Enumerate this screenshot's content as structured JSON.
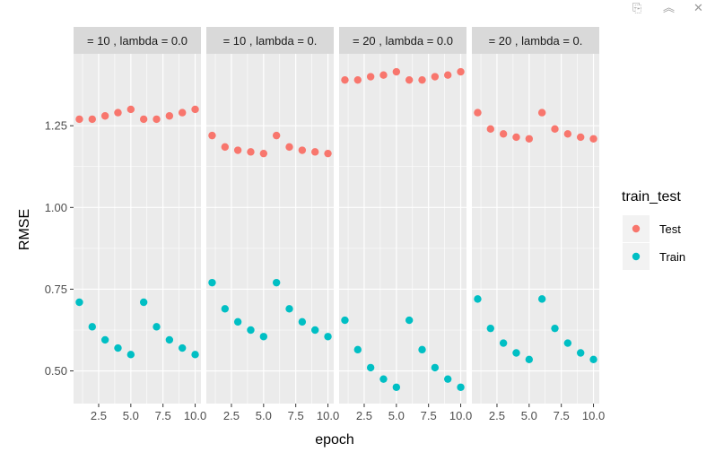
{
  "toolbar": {
    "icons": [
      "export-icon",
      "collapse-icon",
      "close-icon"
    ],
    "export_glyph": "⎘",
    "collapse_glyph": "︽",
    "close_glyph": "✕"
  },
  "chart_data": {
    "type": "scatter",
    "xlabel": "epoch",
    "ylabel": "RMSE",
    "xlim": [
      0.55,
      10.45
    ],
    "ylim": [
      0.4,
      1.47
    ],
    "xticks": [
      2.5,
      5.0,
      7.5,
      10.0
    ],
    "xtick_labels": [
      "2.5",
      "5.0",
      "7.5",
      "10.0"
    ],
    "yticks": [
      0.5,
      0.75,
      1.0,
      1.25
    ],
    "ytick_labels": [
      "0.50",
      "0.75",
      "1.00",
      "1.25"
    ],
    "grid": true,
    "legend": {
      "title": "train_test",
      "position": "right",
      "entries": [
        {
          "name": "Test",
          "color": "#F8766D"
        },
        {
          "name": "Train",
          "color": "#00BFC4"
        }
      ]
    },
    "facets": [
      {
        "strip_label": "=  10 , lambda =  0.0",
        "x": [
          1,
          2,
          3,
          4,
          5,
          6,
          7,
          8,
          9,
          10
        ],
        "series": [
          {
            "name": "Test",
            "values": [
              1.27,
              1.27,
              1.28,
              1.29,
              1.3,
              1.27,
              1.27,
              1.28,
              1.29,
              1.3
            ]
          },
          {
            "name": "Train",
            "values": [
              0.71,
              0.635,
              0.595,
              0.57,
              0.55,
              0.71,
              0.635,
              0.595,
              0.57,
              0.55
            ]
          }
        ]
      },
      {
        "strip_label": "=  10 , lambda =  0.",
        "x": [
          1,
          2,
          3,
          4,
          5,
          6,
          7,
          8,
          9,
          10
        ],
        "series": [
          {
            "name": "Test",
            "values": [
              1.22,
              1.185,
              1.175,
              1.17,
              1.165,
              1.22,
              1.185,
              1.175,
              1.17,
              1.165
            ]
          },
          {
            "name": "Train",
            "values": [
              0.77,
              0.69,
              0.65,
              0.625,
              0.605,
              0.77,
              0.69,
              0.65,
              0.625,
              0.605
            ]
          }
        ]
      },
      {
        "strip_label": "=  20 , lambda =  0.0",
        "x": [
          1,
          2,
          3,
          4,
          5,
          6,
          7,
          8,
          9,
          10
        ],
        "series": [
          {
            "name": "Test",
            "values": [
              1.39,
              1.39,
              1.4,
              1.405,
              1.415,
              1.39,
              1.39,
              1.4,
              1.405,
              1.415
            ]
          },
          {
            "name": "Train",
            "values": [
              0.655,
              0.565,
              0.51,
              0.475,
              0.45,
              0.655,
              0.565,
              0.51,
              0.475,
              0.45
            ]
          }
        ]
      },
      {
        "strip_label": "=  20 , lambda =  0.",
        "x": [
          1,
          2,
          3,
          4,
          5,
          6,
          7,
          8,
          9,
          10
        ],
        "series": [
          {
            "name": "Test",
            "values": [
              1.29,
              1.24,
              1.225,
              1.215,
              1.21,
              1.29,
              1.24,
              1.225,
              1.215,
              1.21
            ]
          },
          {
            "name": "Train",
            "values": [
              0.72,
              0.63,
              0.585,
              0.555,
              0.535,
              0.72,
              0.63,
              0.585,
              0.555,
              0.535
            ]
          }
        ]
      }
    ]
  }
}
